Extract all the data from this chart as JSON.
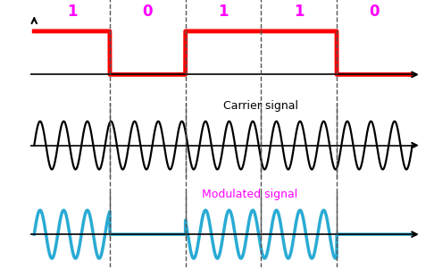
{
  "bits": [
    1,
    0,
    1,
    1,
    0
  ],
  "n_bits": 5,
  "carrier_freq": 16,
  "bit_labels_color": "#FF00FF",
  "digital_color": "#FF0000",
  "carrier_color": "#000000",
  "modulated_color": "#29ABD4",
  "dashed_color": "#555555",
  "digital_high": 0.75,
  "digital_low": 0.0,
  "carrier_amplitude": 0.85,
  "modulated_amplitude_high": 0.85,
  "carrier_label": "Carrier signal",
  "modulated_label": "Modulated signal",
  "background_color": "#FFFFFF",
  "linewidth_digital": 3.5,
  "linewidth_carrier": 1.6,
  "linewidth_modulated": 2.5,
  "linewidth_axis": 1.2,
  "dashed_linewidth": 1.0,
  "bit_label_fontsize": 12,
  "signal_label_fontsize": 9
}
